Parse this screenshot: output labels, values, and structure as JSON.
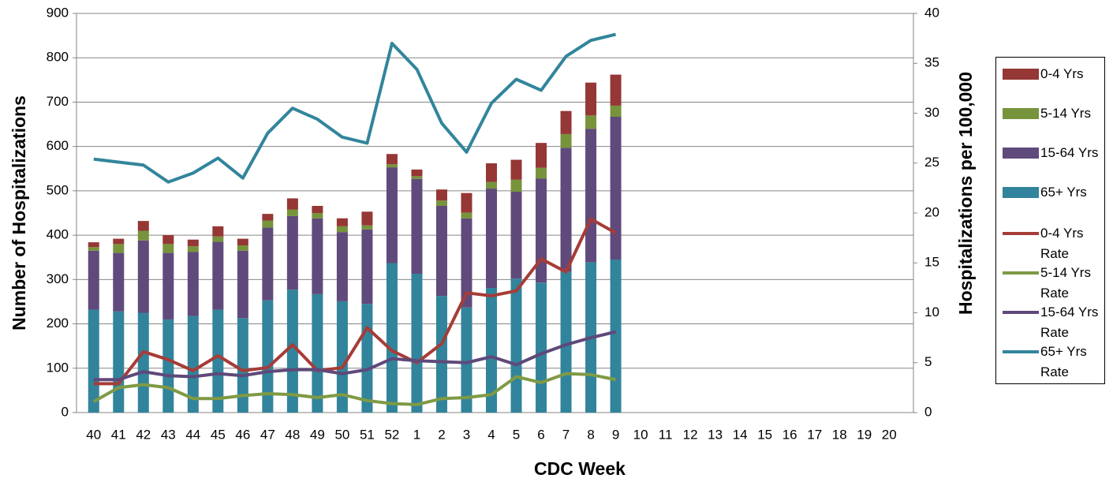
{
  "chart_data": {
    "type": "bar",
    "x_label": "CDC Week",
    "y_label": "Number of Hospitalizations",
    "y2_label": "Hospitalizations per 100,000",
    "categories": [
      "40",
      "41",
      "42",
      "43",
      "44",
      "45",
      "46",
      "47",
      "48",
      "49",
      "50",
      "51",
      "52",
      "1",
      "2",
      "3",
      "4",
      "5",
      "6",
      "7",
      "8",
      "9",
      "10",
      "11",
      "12",
      "13",
      "14",
      "15",
      "16",
      "17",
      "18",
      "19",
      "20"
    ],
    "ylim": [
      0,
      900
    ],
    "yticks": [
      0,
      100,
      200,
      300,
      400,
      500,
      600,
      700,
      800,
      900
    ],
    "y2lim": [
      0,
      40
    ],
    "y2ticks": [
      0,
      5,
      10,
      15,
      20,
      25,
      30,
      35,
      40
    ],
    "grid": true,
    "series": [
      {
        "name": "0-4 Yrs",
        "type": "bar",
        "color": "#953735",
        "values": [
          11,
          12,
          22,
          20,
          15,
          23,
          15,
          15,
          25,
          16,
          18,
          31,
          23,
          15,
          25,
          44,
          42,
          45,
          56,
          52,
          74,
          70,
          null,
          null,
          null,
          null,
          null,
          null,
          null,
          null,
          null,
          null,
          null
        ]
      },
      {
        "name": "5-14 Yrs",
        "type": "bar",
        "color": "#77933c",
        "values": [
          8,
          20,
          22,
          20,
          13,
          12,
          12,
          16,
          15,
          12,
          13,
          9,
          7,
          6,
          12,
          13,
          15,
          27,
          24,
          31,
          30,
          25,
          null,
          null,
          null,
          null,
          null,
          null,
          null,
          null,
          null,
          null,
          null
        ]
      },
      {
        "name": "15-64 Yrs",
        "type": "bar",
        "color": "#604a7b",
        "values": [
          133,
          132,
          163,
          150,
          144,
          153,
          152,
          164,
          166,
          171,
          156,
          168,
          216,
          214,
          203,
          201,
          224,
          196,
          235,
          280,
          301,
          322,
          null,
          null,
          null,
          null,
          null,
          null,
          null,
          null,
          null,
          null,
          null
        ]
      },
      {
        "name": "65+ Yrs",
        "type": "bar",
        "color": "#31849b",
        "values": [
          232,
          228,
          225,
          210,
          218,
          232,
          213,
          253,
          277,
          267,
          251,
          245,
          337,
          313,
          263,
          237,
          281,
          302,
          293,
          317,
          339,
          345,
          null,
          null,
          null,
          null,
          null,
          null,
          null,
          null,
          null,
          null,
          null
        ]
      },
      {
        "name": "0-4 Yrs Rate",
        "type": "line",
        "axis": "y2",
        "color": "#a63c38",
        "values": [
          2.9,
          2.9,
          6.1,
          5.3,
          4.2,
          5.7,
          4.2,
          4.5,
          6.8,
          4.2,
          4.5,
          8.5,
          6.2,
          5.0,
          6.9,
          12.0,
          11.7,
          12.2,
          15.4,
          14.1,
          19.4,
          18.0,
          null,
          null,
          null,
          null,
          null,
          null,
          null,
          null,
          null,
          null,
          null
        ]
      },
      {
        "name": "5-14 Yrs Rate",
        "type": "line",
        "axis": "y2",
        "color": "#7f9a45",
        "values": [
          1.1,
          2.5,
          2.8,
          2.5,
          1.4,
          1.4,
          1.7,
          1.9,
          1.8,
          1.5,
          1.8,
          1.2,
          0.9,
          0.8,
          1.4,
          1.5,
          1.8,
          3.6,
          3.0,
          3.9,
          3.8,
          3.3,
          null,
          null,
          null,
          null,
          null,
          null,
          null,
          null,
          null,
          null,
          null
        ]
      },
      {
        "name": "15-64 Yrs Rate",
        "type": "line",
        "axis": "y2",
        "color": "#5f497a",
        "values": [
          3.3,
          3.3,
          4.1,
          3.7,
          3.6,
          3.9,
          3.7,
          4.1,
          4.3,
          4.3,
          3.9,
          4.3,
          5.4,
          5.2,
          5.1,
          5.0,
          5.6,
          4.8,
          5.9,
          6.8,
          7.5,
          8.1,
          null,
          null,
          null,
          null,
          null,
          null,
          null,
          null,
          null,
          null,
          null
        ]
      },
      {
        "name": "65+ Yrs Rate",
        "type": "line",
        "axis": "y2",
        "color": "#31859c",
        "values": [
          25.4,
          25.1,
          24.8,
          23.1,
          24.0,
          25.5,
          23.5,
          28.0,
          30.5,
          29.4,
          27.6,
          27.0,
          37.0,
          34.4,
          29.0,
          26.1,
          31.0,
          33.4,
          32.3,
          35.7,
          37.3,
          37.9,
          null,
          null,
          null,
          null,
          null,
          null,
          null,
          null,
          null,
          null,
          null
        ]
      }
    ]
  }
}
